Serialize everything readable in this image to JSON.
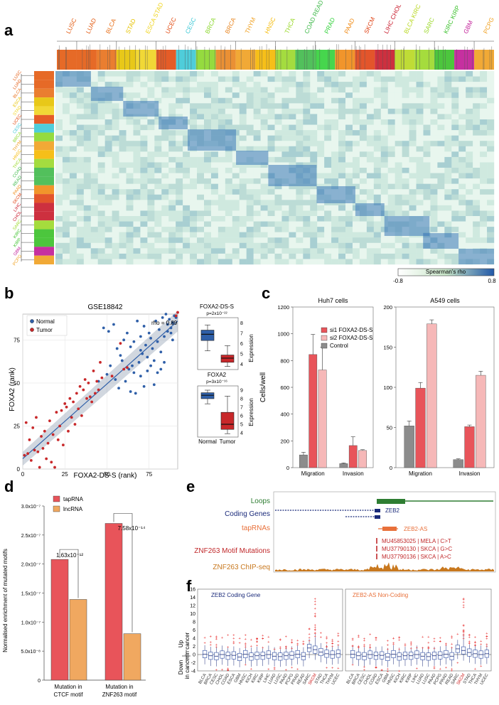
{
  "panels": {
    "a": "a",
    "b": "b",
    "c": "c",
    "d": "d",
    "e": "e",
    "f": "f"
  },
  "panel_a": {
    "top_labels": [
      "LUSC",
      "LUAD",
      "BLCA",
      "STAD",
      "ESCA STAD",
      "UCEC",
      "CESC",
      "BRCA",
      "BRCA",
      "THYM",
      "HNSC",
      "THCA",
      "COAD READ",
      "PRAD",
      "PAAD",
      "SKCM",
      "LIHC CHOL",
      "BLCA KIRC",
      "SARC",
      "KIRC KIRP",
      "GBM",
      "PCPG"
    ],
    "top_colors": [
      "#e35a10",
      "#e35a10",
      "#e8701a",
      "#e6c200",
      "#f0d420",
      "#e24a10",
      "#3cc8d6",
      "#8ad72a",
      "#e8841e",
      "#f0a020",
      "#f5b800",
      "#9ad82a",
      "#3fb94a",
      "#32d23a",
      "#f08a14",
      "#e04214",
      "#c8192a",
      "#b8d820",
      "#9bd828",
      "#38c028",
      "#c01a96",
      "#f0a020"
    ],
    "left_labels": [
      "LUSC",
      "LUAD",
      "BLCA",
      "ESCA",
      "STAD",
      "UCEC",
      "CESC",
      "BRCA",
      "THYM",
      "HNSC",
      "THCA",
      "COAD",
      "READ",
      "PAAD",
      "SKCM",
      "LIHC",
      "CHOL",
      "SARC",
      "KIRC",
      "KIRP",
      "GBM",
      "PCPG"
    ],
    "colorbar": {
      "label": "Spearman's rho",
      "min": "-0.8",
      "max": "0.8"
    }
  },
  "panel_b": {
    "title": "GSE18842",
    "rho_label": "rho =  0.89",
    "legend": [
      "Normal",
      "Tumor"
    ],
    "xlabel": "FOXA2-DS-S (rank)",
    "ylabel": "FOXA2 (rank)",
    "xticks": [
      "0",
      "25",
      "50",
      "75"
    ],
    "yticks": [
      "0",
      "25",
      "50",
      "75"
    ],
    "box_top": {
      "title": "FOXA2-DS-S",
      "pval": "p=2x10⁻²²",
      "yticks": [
        "8",
        "7",
        "6",
        "5",
        "4"
      ],
      "ylabel": "Expression"
    },
    "box_bottom": {
      "title": "FOXA2",
      "pval": "p=3x10⁻¹⁶",
      "yticks": [
        "9",
        "8",
        "7",
        "6",
        "5",
        "4"
      ],
      "ylabel": "Expression"
    },
    "box_xlabels": [
      "Normal",
      "Tumor"
    ]
  },
  "panel_c": {
    "ylabel": "Cells/well",
    "legend": [
      "si1 FOXA2-DS-S",
      "si2 FOXA2-DS-S",
      "Control"
    ],
    "legend_colors": [
      "#e8545a",
      "#f6b8b8",
      "#8c8c8c"
    ],
    "categories": [
      "Migration",
      "Invasion"
    ]
  },
  "panel_d": {
    "ylabel": "Normalised enrichment of mutated motifs",
    "legend": [
      "tapRNA",
      "lncRNA"
    ],
    "legend_colors": [
      "#e8545a",
      "#f0a860"
    ],
    "yticks": [
      "0",
      "5.0x10⁻⁸",
      "1.0x10⁻⁷",
      "1.5x10⁻⁷",
      "2.0x10⁻⁷",
      "2.5x10⁻⁷",
      "3.0x10⁻⁷"
    ],
    "pvals": [
      "1.63x10⁻¹²",
      "7.58x10⁻¹⁴"
    ],
    "xlabels": [
      [
        "Mutation in",
        "CTCF motif"
      ],
      [
        "Mutation in",
        "ZNF263 motif"
      ]
    ]
  },
  "panel_e": {
    "tracks": [
      "Loops",
      "Coding Genes",
      "tapRNAs",
      "ZNF263 Motif Mutations",
      "ZNF263 ChIP-seq"
    ],
    "track_colors": [
      "#2e7d32",
      "#1a2a7a",
      "#e8703a",
      "#c0282a",
      "#c8781e"
    ],
    "gene_labels": [
      "ZEB2",
      "ZEB2-AS"
    ],
    "mutations": [
      "MU45853025 | MELA | C>T",
      "MU37790130 | SKCA | G>C",
      "MU37790136 | SKCA | A>C"
    ]
  },
  "panel_f": {
    "titles": [
      "ZEB2 Coding Gene",
      "ZEB2-AS Non-Coding"
    ],
    "title_colors": [
      "#1a2a7a",
      "#e8703a"
    ],
    "yticks": [
      "16",
      "14",
      "12",
      "10",
      "8",
      "6",
      "4",
      "2",
      "0",
      "-2",
      "-4"
    ],
    "up_label": [
      "Up",
      "in cancer"
    ],
    "down_label": [
      "Down",
      "in cancer"
    ],
    "cancers": [
      "BLCA",
      "BRCA",
      "CESC",
      "CHOL",
      "COAD",
      "ESCA",
      "GBM",
      "HNSC",
      "KICH",
      "KIRC",
      "KIRP",
      "LIHC",
      "LUAD",
      "LUSC",
      "PAAD",
      "PCPG",
      "PRAD",
      "READ",
      "SARC",
      "SKCM",
      "STAD",
      "THCA",
      "THYM",
      "UCEC"
    ],
    "highlight": "SKCM"
  },
  "chart_data": [
    {
      "type": "scatter",
      "panel": "b",
      "title": "GSE18842",
      "xlabel": "FOXA2-DS-S (rank)",
      "ylabel": "FOXA2 (rank)",
      "xlim": [
        0,
        92
      ],
      "ylim": [
        0,
        90
      ],
      "series": [
        {
          "name": "Normal",
          "color": "#2f5fa8",
          "points": [
            [
              48,
              82
            ],
            [
              51,
              80
            ],
            [
              54,
              84
            ],
            [
              56,
              70
            ],
            [
              58,
              66
            ],
            [
              60,
              75
            ],
            [
              62,
              79
            ],
            [
              63,
              58
            ],
            [
              64,
              71
            ],
            [
              65,
              60
            ],
            [
              66,
              74
            ],
            [
              68,
              86
            ],
            [
              69,
              62
            ],
            [
              70,
              77
            ],
            [
              71,
              67
            ],
            [
              72,
              83
            ],
            [
              73,
              72
            ],
            [
              74,
              65
            ],
            [
              75,
              79
            ],
            [
              76,
              76
            ],
            [
              77,
              70
            ],
            [
              78,
              63
            ],
            [
              79,
              86
            ],
            [
              80,
              74
            ],
            [
              81,
              81
            ],
            [
              82,
              68
            ],
            [
              83,
              88
            ],
            [
              84,
              77
            ],
            [
              85,
              90
            ],
            [
              86,
              84
            ],
            [
              87,
              87
            ],
            [
              88,
              79
            ],
            [
              89,
              85
            ],
            [
              90,
              89
            ],
            [
              91,
              88
            ],
            [
              50,
              55
            ],
            [
              55,
              52
            ],
            [
              57,
              47
            ],
            [
              59,
              63
            ],
            [
              61,
              51
            ],
            [
              64,
              45
            ],
            [
              67,
              44
            ],
            [
              70,
              54
            ],
            [
              72,
              48
            ],
            [
              74,
              57
            ],
            [
              76,
              60
            ],
            [
              78,
              49
            ],
            [
              80,
              56
            ],
            [
              82,
              58
            ],
            [
              84,
              62
            ],
            [
              86,
              80
            ],
            [
              88,
              82
            ],
            [
              89,
              75
            ],
            [
              45,
              51
            ],
            [
              52,
              60
            ],
            [
              66,
              56
            ],
            [
              70,
              69
            ]
          ]
        },
        {
          "name": "Tumor",
          "color": "#c8282a",
          "points": [
            [
              1,
              8
            ],
            [
              2,
              27
            ],
            [
              3,
              9
            ],
            [
              4,
              17
            ],
            [
              5,
              5
            ],
            [
              6,
              24
            ],
            [
              7,
              11
            ],
            [
              8,
              30
            ],
            [
              9,
              10
            ],
            [
              10,
              1
            ],
            [
              11,
              19
            ],
            [
              12,
              12
            ],
            [
              13,
              22
            ],
            [
              14,
              6
            ],
            [
              15,
              15
            ],
            [
              16,
              28
            ],
            [
              17,
              4
            ],
            [
              18,
              20
            ],
            [
              19,
              1
            ],
            [
              20,
              33
            ],
            [
              21,
              17
            ],
            [
              22,
              25
            ],
            [
              23,
              34
            ],
            [
              24,
              14
            ],
            [
              25,
              38
            ],
            [
              26,
              36
            ],
            [
              27,
              22
            ],
            [
              28,
              41
            ],
            [
              29,
              30
            ],
            [
              30,
              39
            ],
            [
              31,
              26
            ],
            [
              32,
              44
            ],
            [
              33,
              35
            ],
            [
              34,
              48
            ],
            [
              35,
              31
            ],
            [
              36,
              46
            ],
            [
              37,
              52
            ],
            [
              38,
              41
            ],
            [
              39,
              50
            ],
            [
              40,
              42
            ],
            [
              41,
              39
            ],
            [
              42,
              57
            ],
            [
              43,
              44
            ],
            [
              44,
              51
            ],
            [
              45,
              46
            ],
            [
              46,
              62
            ],
            [
              47,
              53
            ],
            [
              53,
              54
            ],
            [
              58,
              73
            ],
            [
              60,
              58
            ],
            [
              62,
              59
            ],
            [
              91,
              89
            ],
            [
              92,
              91
            ]
          ]
        }
      ]
    },
    {
      "type": "box",
      "panel": "b",
      "title": "FOXA2-DS-S",
      "categories": [
        "Normal",
        "Tumor"
      ],
      "ylim": [
        3.5,
        8.5
      ],
      "boxes": [
        {
          "min": 5.3,
          "q1": 6.3,
          "median": 6.9,
          "q3": 7.3,
          "max": 7.8
        },
        {
          "min": 3.8,
          "q1": 4.2,
          "median": 4.6,
          "q3": 4.9,
          "max": 5.8
        }
      ]
    },
    {
      "type": "box",
      "panel": "b",
      "title": "FOXA2",
      "categories": [
        "Normal",
        "Tumor"
      ],
      "ylim": [
        3.5,
        9.5
      ],
      "boxes": [
        {
          "min": 7.4,
          "q1": 8.0,
          "median": 8.4,
          "q3": 8.7,
          "max": 9.0
        },
        {
          "min": 3.9,
          "q1": 4.4,
          "median": 5.0,
          "q3": 6.4,
          "max": 8.3
        }
      ]
    },
    {
      "type": "bar",
      "panel": "c",
      "title": "Huh7 cells",
      "categories": [
        "Migration",
        "Invasion"
      ],
      "ylim": [
        0,
        1200
      ],
      "series": [
        {
          "name": "Control",
          "values": [
            95,
            30
          ],
          "errors": [
            20,
            5
          ]
        },
        {
          "name": "si1 FOXA2-DS-S",
          "values": [
            845,
            165
          ],
          "errors": [
            150,
            65
          ]
        },
        {
          "name": "si2 FOXA2-DS-S",
          "values": [
            730,
            128
          ],
          "errors": [
            170,
            6
          ]
        }
      ]
    },
    {
      "type": "bar",
      "panel": "c",
      "title": "A549 cells",
      "categories": [
        "Migration",
        "Invasion"
      ],
      "ylim": [
        0,
        200
      ],
      "series": [
        {
          "name": "Control",
          "values": [
            52,
            10
          ],
          "errors": [
            6,
            1
          ]
        },
        {
          "name": "si1 FOXA2-DS-S",
          "values": [
            99,
            51
          ],
          "errors": [
            7,
            2
          ]
        },
        {
          "name": "si2 FOXA2-DS-S",
          "values": [
            179,
            115
          ],
          "errors": [
            5,
            5
          ]
        }
      ]
    },
    {
      "type": "bar",
      "panel": "d",
      "categories": [
        "Mutation in CTCF motif",
        "Mutation in ZNF263 motif"
      ],
      "ylim": [
        0,
        3e-07
      ],
      "series": [
        {
          "name": "tapRNA",
          "values": [
            2.08e-07,
            2.7e-07
          ]
        },
        {
          "name": "lncRNA",
          "values": [
            1.39e-07,
            8e-08
          ]
        }
      ]
    },
    {
      "type": "box",
      "panel": "f",
      "title": "ZEB2 Coding Gene",
      "ylim": [
        -4,
        16
      ],
      "medians": [
        0.1,
        -0.3,
        -0.4,
        0,
        -0.3,
        -0.2,
        -0.6,
        0.1,
        -0.5,
        -0.3,
        -0.3,
        0,
        -0.4,
        -0.5,
        -0.3,
        -0.2,
        0.1,
        -0.4,
        1.6,
        1.2,
        0.6,
        0.2,
        0,
        0.2
      ]
    },
    {
      "type": "box",
      "panel": "f",
      "title": "ZEB2-AS Non-Coding",
      "ylim": [
        -4,
        16
      ],
      "medians": [
        0.1,
        -0.3,
        -0.4,
        0,
        -0.3,
        -0.2,
        -0.6,
        0.1,
        -0.5,
        -0.3,
        -0.3,
        0,
        -0.4,
        -0.5,
        -0.3,
        -0.2,
        0.1,
        -0.4,
        1.4,
        1.0,
        0.5,
        0.2,
        0,
        0.2
      ]
    }
  ]
}
